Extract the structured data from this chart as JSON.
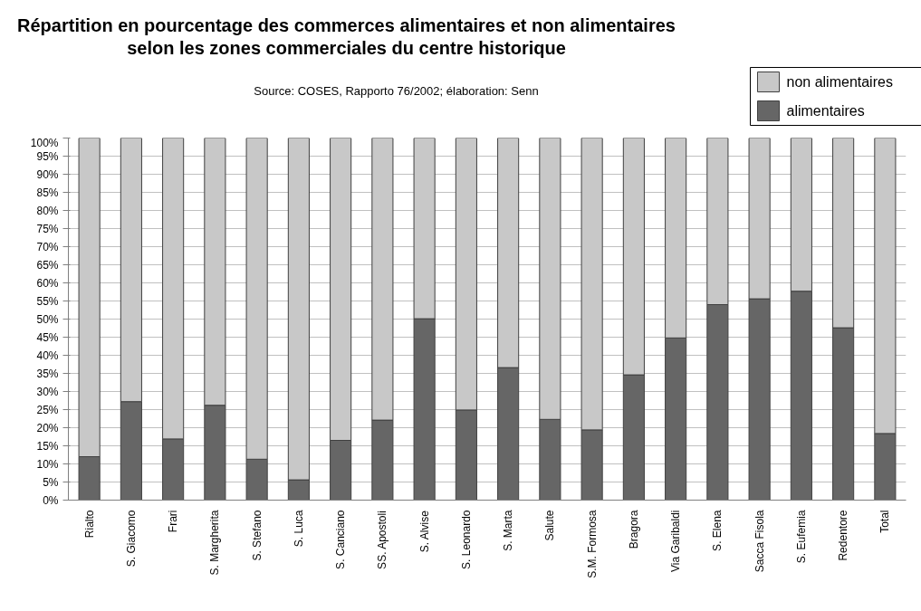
{
  "chart_data": {
    "type": "bar",
    "stacked": true,
    "title": "Répartition en pourcentage des commerces alimentaires et non alimentaires selon les zones commerciales du centre historique",
    "annotations": [
      "Source: COSES, Rapporto 76/2002; élaboration: Senn"
    ],
    "categories": [
      "Rialto",
      "S. Giacomo",
      "Frari",
      "S. Margherita",
      "S. Stefano",
      "S. Luca",
      "S. Canciano",
      "SS. Apostoli",
      "S. Alvise",
      "S. Leonardo",
      "S. Marta",
      "Salute",
      "S.M. Formosa",
      "Bragora",
      "Via Garibaldi",
      "S. Elena",
      "Sacca Fisola",
      "S. Eufemia",
      "Redentore",
      "Total"
    ],
    "series": [
      {
        "name": "alimentaires",
        "color": "#666666",
        "values": [
          12,
          27.2,
          16.9,
          26.2,
          11.3,
          5.6,
          16.5,
          22.1,
          50.1,
          24.9,
          36.6,
          22.3,
          19.4,
          34.6,
          44.8,
          54,
          55.6,
          57.7,
          47.6,
          18.4
        ]
      },
      {
        "name": "non alimentaires",
        "color": "#c8c8c8",
        "values": [
          88,
          72.8,
          83.1,
          73.8,
          88.7,
          94.4,
          83.5,
          77.9,
          49.9,
          75.1,
          63.4,
          77.7,
          80.6,
          65.4,
          55.2,
          46,
          44.4,
          42.3,
          52.4,
          81.6
        ]
      }
    ],
    "ylim": [
      0,
      100
    ],
    "yticks": [
      {
        "value": 0,
        "label": "0%"
      },
      {
        "value": 5,
        "label": "5%"
      },
      {
        "value": 10,
        "label": "10%"
      },
      {
        "value": 15,
        "label": "15%"
      },
      {
        "value": 20,
        "label": "20%"
      },
      {
        "value": 25,
        "label": "25%"
      },
      {
        "value": 30,
        "label": "30%"
      },
      {
        "value": 35,
        "label": "35%"
      },
      {
        "value": 40,
        "label": "40%"
      },
      {
        "value": 45,
        "label": "45%"
      },
      {
        "value": 50,
        "label": "50%"
      },
      {
        "value": 55,
        "label": "55%"
      },
      {
        "value": 60,
        "label": "60%"
      },
      {
        "value": 65,
        "label": "65%"
      },
      {
        "value": 70,
        "label": "70%"
      },
      {
        "value": 75,
        "label": "75%"
      },
      {
        "value": 80,
        "label": "80%"
      },
      {
        "value": 85,
        "label": "85%"
      },
      {
        "value": 90,
        "label": "90%"
      },
      {
        "value": 95,
        "label": "95%"
      },
      {
        "value": 100,
        "label": "100%"
      }
    ],
    "grid": "y",
    "legend": "top right"
  }
}
